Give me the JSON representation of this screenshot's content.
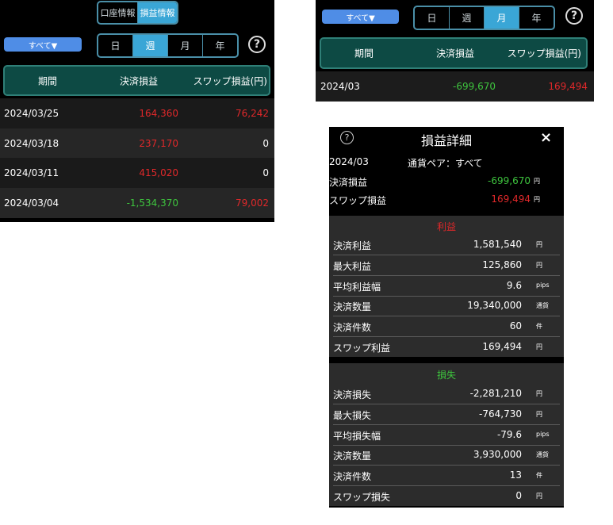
{
  "weekly_panel": {
    "top_tabs": [
      {
        "label": "口座情報",
        "active": false
      },
      {
        "label": "損益情報",
        "active": true
      }
    ],
    "filter_button": "すべて▼",
    "period_tabs": [
      {
        "label": "日",
        "active": false
      },
      {
        "label": "週",
        "active": true
      },
      {
        "label": "月",
        "active": false
      },
      {
        "label": "年",
        "active": false
      }
    ],
    "help": "?",
    "headers": [
      "期間",
      "決済損益",
      "スワップ損益(円)"
    ],
    "rows": [
      {
        "period": "2024/03/25",
        "pl": "164,360",
        "pl_color": "red",
        "swap": "76,242",
        "swap_color": "red"
      },
      {
        "period": "2024/03/18",
        "pl": "237,170",
        "pl_color": "red",
        "swap": "0",
        "swap_color": "white"
      },
      {
        "period": "2024/03/11",
        "pl": "415,020",
        "pl_color": "red",
        "swap": "0",
        "swap_color": "white"
      },
      {
        "period": "2024/03/04",
        "pl": "-1,534,370",
        "pl_color": "green",
        "swap": "79,002",
        "swap_color": "red"
      }
    ]
  },
  "monthly_panel": {
    "filter_button": "すべて▼",
    "period_tabs": [
      {
        "label": "日",
        "active": false
      },
      {
        "label": "週",
        "active": false
      },
      {
        "label": "月",
        "active": true
      },
      {
        "label": "年",
        "active": false
      }
    ],
    "help": "?",
    "headers": [
      "期間",
      "決済損益",
      "スワップ損益(円)"
    ],
    "rows": [
      {
        "period": "2024/03",
        "pl": "-699,670",
        "swap": "169,494"
      }
    ]
  },
  "detail": {
    "help": "?",
    "title": "損益詳細",
    "close": "×",
    "period": "2024/03",
    "pair": "通貨ペア：すべて",
    "summary": [
      {
        "label": "決済損益",
        "value": "-699,670",
        "unit": "円",
        "color": "green"
      },
      {
        "label": "スワップ損益",
        "value": "169,494",
        "unit": "円",
        "color": "red"
      }
    ],
    "profit_title": "利益",
    "profit": [
      {
        "label": "決済利益",
        "value": "1,581,540",
        "unit": "円"
      },
      {
        "label": "最大利益",
        "value": "125,860",
        "unit": "円"
      },
      {
        "label": "平均利益幅",
        "value": "9.6",
        "unit": "pips"
      },
      {
        "label": "決済数量",
        "value": "19,340,000",
        "unit": "通貨"
      },
      {
        "label": "決済件数",
        "value": "60",
        "unit": "件"
      },
      {
        "label": "スワップ利益",
        "value": "169,494",
        "unit": "円"
      }
    ],
    "loss_title": "損失",
    "loss": [
      {
        "label": "決済損失",
        "value": "-2,281,210",
        "unit": "円"
      },
      {
        "label": "最大損失",
        "value": "-764,730",
        "unit": "円"
      },
      {
        "label": "平均損失幅",
        "value": "-79.6",
        "unit": "pips"
      },
      {
        "label": "決済数量",
        "value": "3,930,000",
        "unit": "通貨"
      },
      {
        "label": "決済件数",
        "value": "13",
        "unit": "件"
      },
      {
        "label": "スワップ損失",
        "value": "0",
        "unit": "円"
      }
    ]
  },
  "colors": {
    "profit": "#e0282a",
    "loss": "#3ec43e",
    "accent": "#3aa6d6",
    "header": "#0d4a44"
  }
}
